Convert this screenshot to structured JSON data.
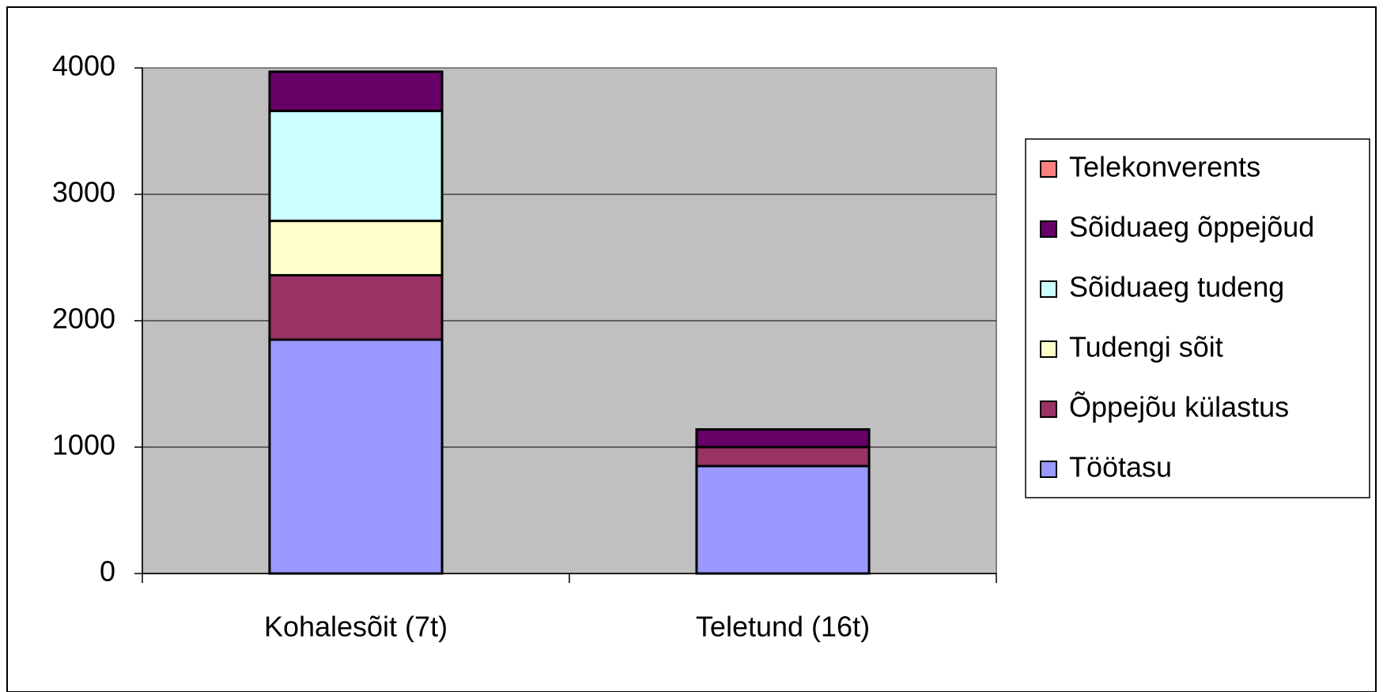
{
  "chart_data": {
    "type": "stacked_bar",
    "categories": [
      "Kohalesõit (7t)",
      "Teletund (16t)"
    ],
    "series": [
      {
        "name": "Töötasu",
        "color": "#9999ff",
        "values": [
          1850,
          850
        ]
      },
      {
        "name": "Õppejõu külastus",
        "color": "#993366",
        "values": [
          510,
          150
        ]
      },
      {
        "name": "Tudengi sõit",
        "color": "#ffffcc",
        "values": [
          430,
          0
        ]
      },
      {
        "name": "Sõiduaeg tudeng",
        "color": "#ccffff",
        "values": [
          870,
          0
        ]
      },
      {
        "name": "Sõiduaeg õppejõud",
        "color": "#660066",
        "values": [
          310,
          140
        ]
      },
      {
        "name": "Telekonverents",
        "color": "#ff8080",
        "values": [
          0,
          0
        ]
      }
    ],
    "ylim": [
      0,
      4000
    ],
    "yticks": [
      0,
      1000,
      2000,
      3000,
      4000
    ],
    "grid": true,
    "legend": "right"
  }
}
